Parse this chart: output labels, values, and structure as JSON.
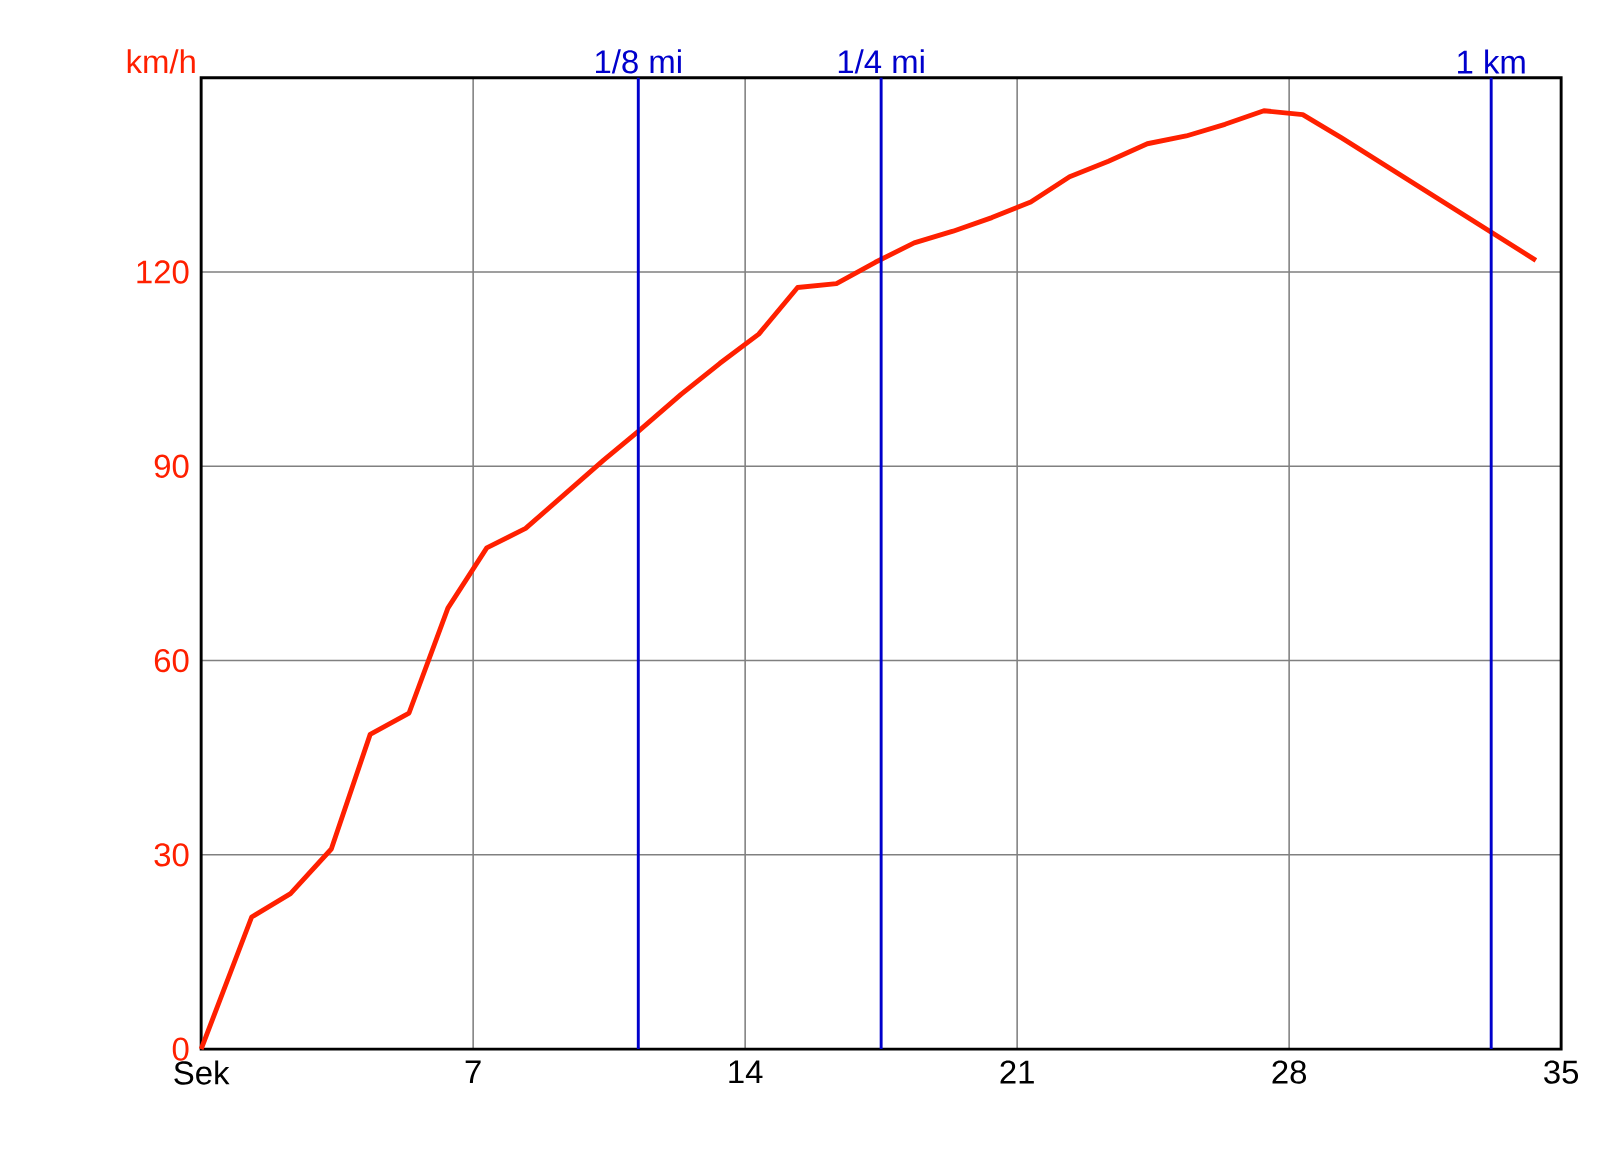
{
  "chart_data": {
    "type": "line",
    "ylabel": "km/h",
    "x": [
      0,
      1.3,
      2.3,
      3.35,
      4.35,
      5.35,
      6.35,
      7.35,
      8.35,
      10.35,
      11.25,
      12.35,
      13.35,
      14.35,
      15.35,
      16.35,
      17.35,
      18.35,
      19.35,
      20.35,
      21.35,
      22.35,
      23.35,
      24.35,
      25.35,
      26.35,
      27.35,
      28.35,
      29.35,
      34.35
    ],
    "series": [
      {
        "color": "#ff2000",
        "values": [
          0,
          20.4,
          24,
          30.9,
          48.6,
          51.9,
          68.1,
          77.4,
          80.4,
          90.9,
          95.4,
          101.1,
          105.9,
          110.4,
          117.6,
          118.2,
          121.5,
          124.5,
          126.3,
          128.4,
          130.8,
          134.7,
          137.1,
          139.8,
          141,
          142.8,
          144.9,
          144.3,
          140.7,
          121.8
        ]
      }
    ],
    "xlim": [
      0,
      35
    ],
    "ylim": [
      0,
      150
    ],
    "xticks": [
      {
        "value": 0,
        "label": "Sek"
      },
      7,
      14,
      21,
      28,
      35
    ],
    "yticks": [
      0,
      30,
      60,
      90,
      120
    ],
    "grid": true,
    "marker": "none",
    "line_style": "solid",
    "ref_lines": [
      {
        "axis": "x",
        "value": 11.25,
        "label": "1/8 mi",
        "color": "#0000cc"
      },
      {
        "axis": "x",
        "value": 17.5,
        "label": "1/4 mi",
        "color": "#0000cc"
      },
      {
        "axis": "x",
        "value": 33.2,
        "label": "1 km",
        "color": "#0000cc"
      }
    ]
  }
}
